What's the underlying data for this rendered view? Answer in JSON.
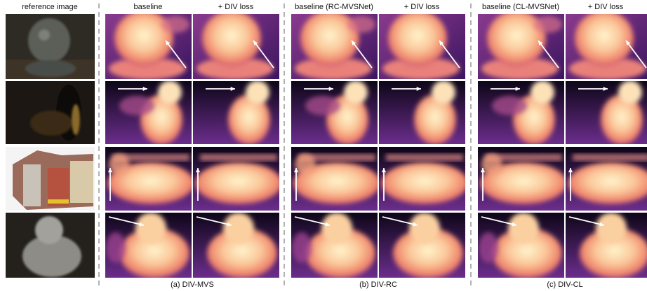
{
  "reference_header": "reference image",
  "groups": [
    {
      "headers": [
        "baseline",
        "+ DIV loss"
      ],
      "caption": "(a) DIV-MVS"
    },
    {
      "headers": [
        "baseline (RC-MVSNet)",
        "+ DIV loss"
      ],
      "caption": "(b) DIV-RC"
    },
    {
      "headers": [
        "baseline (CL-MVSNet)",
        "+ DIV loss"
      ],
      "caption": "(c) DIV-CL"
    }
  ]
}
